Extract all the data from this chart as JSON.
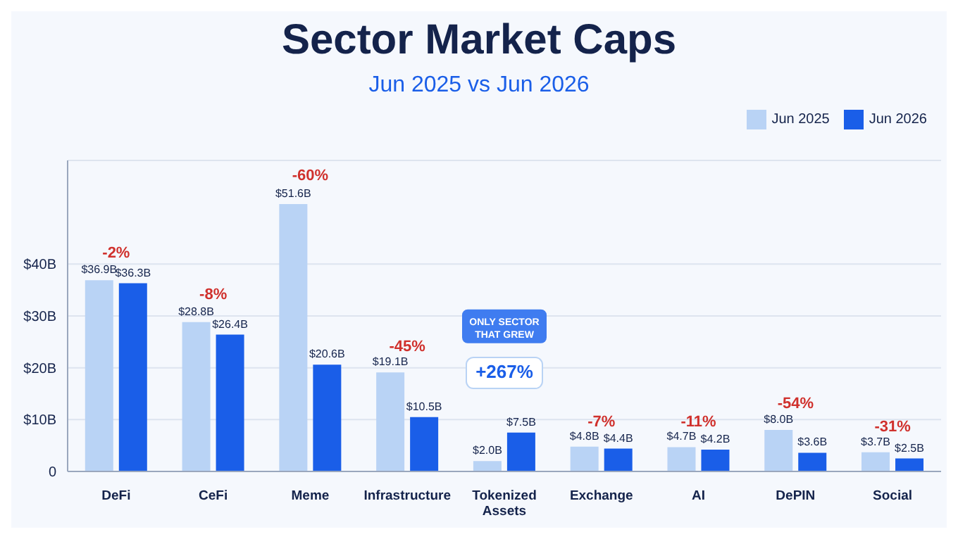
{
  "chart_data": {
    "type": "bar",
    "title": "Sector Market Caps",
    "subtitle": "Jun 2025 vs Jun 2026",
    "categories": [
      "DeFi",
      "CeFi",
      "Meme",
      "Infrastructure",
      "Tokenized Assets",
      "Exchange",
      "AI",
      "DePIN",
      "Social"
    ],
    "series": [
      {
        "name": "Jun 2025",
        "color": "#b9d3f5",
        "values": [
          36.9,
          28.8,
          51.6,
          19.1,
          2.0,
          4.8,
          4.7,
          8.0,
          3.7
        ],
        "value_labels": [
          "$36.9B",
          "$28.8B",
          "$51.6B",
          "$19.1B",
          "$2.0B",
          "$4.8B",
          "$4.7B",
          "$8.0B",
          "$3.7B"
        ]
      },
      {
        "name": "Jun 2026",
        "color": "#1a5ee8",
        "values": [
          36.3,
          26.4,
          20.6,
          10.5,
          7.5,
          4.4,
          4.2,
          3.6,
          2.5
        ],
        "value_labels": [
          "$36.3B",
          "$26.4B",
          "$20.6B",
          "$10.5B",
          "$7.5B",
          "$4.4B",
          "$4.2B",
          "$3.6B",
          "$2.5B"
        ]
      }
    ],
    "ylim": [
      0,
      60
    ],
    "yticks": [
      0,
      {
        "value": 10,
        "label": "$10B"
      },
      {
        "value": 20,
        "label": "$20B"
      },
      {
        "value": 30,
        "label": "$30B"
      },
      {
        "value": 40,
        "label": "$40B"
      }
    ],
    "grid": "y",
    "legend": "top right",
    "annotations": [
      "-2%",
      "-8%",
      "-60%",
      "-45%",
      "ONLY SECTOR THAT GREW",
      "+267%",
      "-7%",
      "-11%",
      "-54%",
      "-31%"
    ]
  }
}
